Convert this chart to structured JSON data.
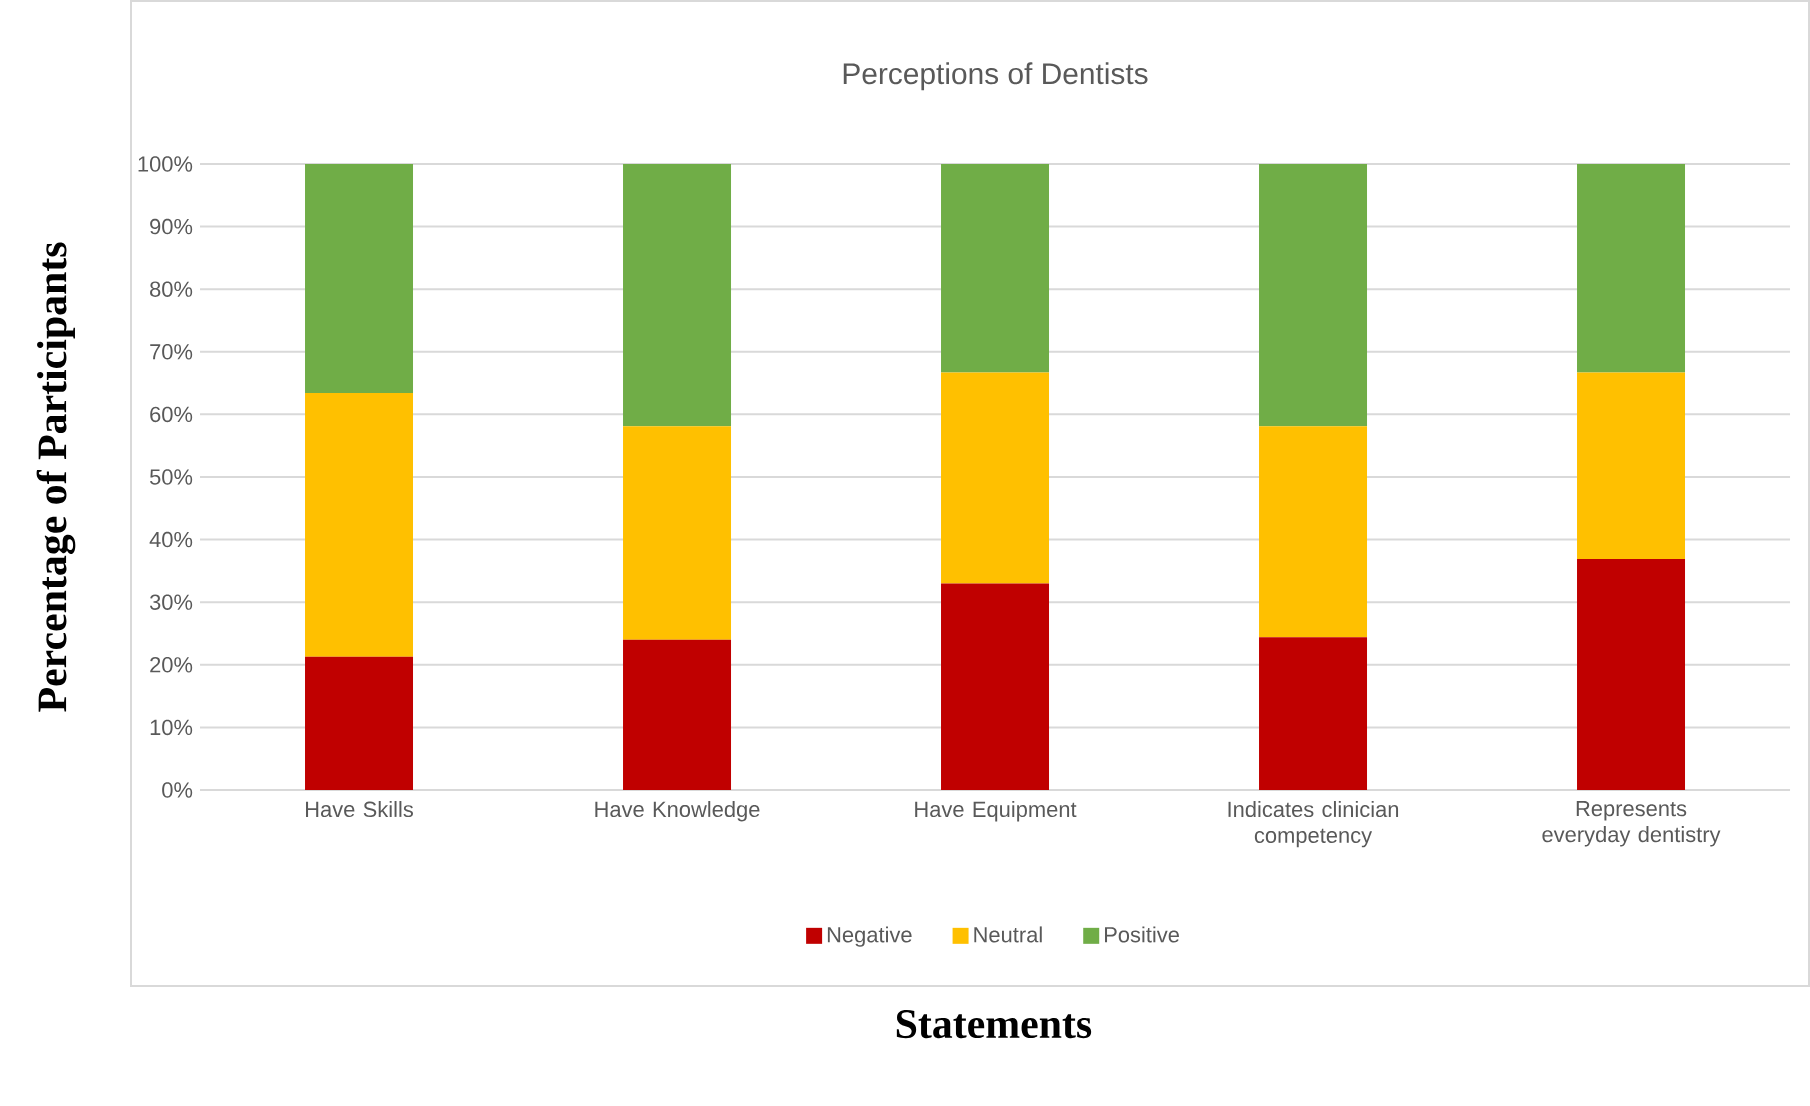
{
  "chart_data": {
    "type": "bar",
    "stacked": true,
    "title": "Perceptions of Dentists",
    "xlabel": "Statements",
    "ylabel": "Percentage of Participants",
    "categories": [
      "Have Skills",
      "Have Knowledge",
      "Have Equipment",
      "Indicates clinician competency",
      "Represents everyday dentistry"
    ],
    "series": [
      {
        "name": "Negative",
        "color": "#c00000",
        "values": [
          21.3,
          24.0,
          33.0,
          24.4,
          36.9
        ]
      },
      {
        "name": "Neutral",
        "color": "#ffc000",
        "values": [
          42.1,
          34.1,
          33.7,
          33.7,
          29.8
        ]
      },
      {
        "name": "Positive",
        "color": "#70ad47",
        "values": [
          36.6,
          41.9,
          33.3,
          41.9,
          33.3
        ]
      }
    ],
    "ylim": [
      0,
      100
    ],
    "yticks": [
      {
        "value": 0,
        "label": "0%"
      },
      {
        "value": 10,
        "label": "10%"
      },
      {
        "value": 20,
        "label": "20%"
      },
      {
        "value": 30,
        "label": "30%"
      },
      {
        "value": 40,
        "label": "40%"
      },
      {
        "value": 50,
        "label": "50%"
      },
      {
        "value": 60,
        "label": "60%"
      },
      {
        "value": 70,
        "label": "70%"
      },
      {
        "value": 80,
        "label": "80%"
      },
      {
        "value": 90,
        "label": "90%"
      },
      {
        "value": 100,
        "label": "100%"
      }
    ],
    "grid": "y",
    "legend": "bottom"
  }
}
